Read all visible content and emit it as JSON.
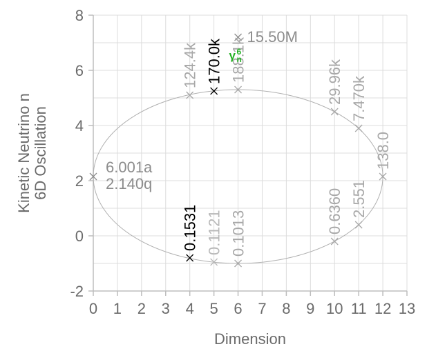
{
  "chart_data": {
    "type": "scatter",
    "xlabel": "Dimension",
    "ylabel_lines": [
      "Kinetic Neutrino n",
      "6D Oscillation"
    ],
    "xlim": [
      0,
      13
    ],
    "ylim": [
      -2,
      8
    ],
    "x_ticks": [
      0,
      1,
      2,
      3,
      4,
      5,
      6,
      7,
      8,
      9,
      10,
      11,
      12,
      13
    ],
    "y_ticks": [
      -2,
      0,
      2,
      4,
      6,
      8
    ],
    "y_minor_step": 1,
    "grid": true,
    "points": [
      {
        "x": 0,
        "y": 2.15,
        "label": "6.001a\n2.140q",
        "rotate": false,
        "color": "#8c8c8c"
      },
      {
        "x": 4,
        "y": 5.1,
        "label": "124.4k",
        "rotate": true,
        "color": "#a8a8a8"
      },
      {
        "x": 4,
        "y": -0.8,
        "label": "0.1531",
        "rotate": true,
        "color": "#000000"
      },
      {
        "x": 5,
        "y": 5.25,
        "label": "170.0k",
        "rotate": true,
        "color": "#000000"
      },
      {
        "x": 5,
        "y": -0.95,
        "label": "0.1121",
        "rotate": true,
        "color": "#b8b8b8"
      },
      {
        "x": 6,
        "y": 7.2,
        "label": "15.50M",
        "rotate": false,
        "color": "#8c8c8c"
      },
      {
        "x": 6,
        "y": 5.3,
        "label": "188.1k",
        "rotate": true,
        "color": "#a8a8a8"
      },
      {
        "x": 6,
        "y": -1.0,
        "label": "0.1013",
        "rotate": true,
        "color": "#a8a8a8"
      },
      {
        "x": 10,
        "y": 4.5,
        "label": "29.96k",
        "rotate": true,
        "color": "#a8a8a8"
      },
      {
        "x": 10,
        "y": -0.2,
        "label": "0.6360",
        "rotate": true,
        "color": "#a8a8a8"
      },
      {
        "x": 11,
        "y": 3.9,
        "label": "7.470k",
        "rotate": true,
        "color": "#a8a8a8"
      },
      {
        "x": 11,
        "y": 0.4,
        "label": "2.551",
        "rotate": true,
        "color": "#a8a8a8"
      },
      {
        "x": 12,
        "y": 2.15,
        "label": "138.0",
        "rotate": true,
        "color": "#a8a8a8"
      }
    ],
    "ellipse": {
      "cx": 6,
      "cy": 2.15,
      "rx": 6,
      "ry": 3.15,
      "color": "#b0b0b0"
    },
    "annotation": {
      "base": "γ",
      "sub": "n",
      "sup": "6",
      "x": 6,
      "y": 6.5,
      "color": "#22b022"
    }
  }
}
